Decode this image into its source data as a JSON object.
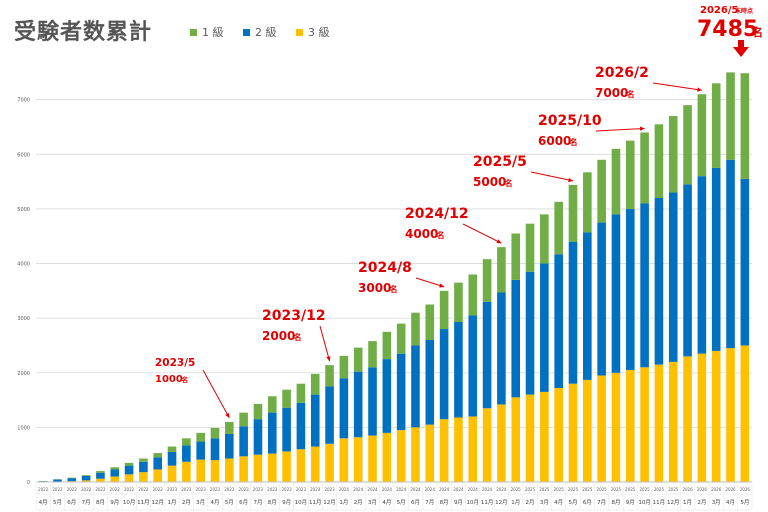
{
  "chart_data": {
    "type": "bar",
    "stacked": true,
    "title": "受験者数累計",
    "xlabel": "",
    "ylabel": "",
    "ylim": [
      0,
      7800
    ],
    "yticks": [
      0,
      1000,
      2000,
      3000,
      4000,
      5000,
      6000,
      7000
    ],
    "grid": true,
    "legend_position": "top",
    "categories": [
      "2022/4月",
      "2022/5月",
      "2022/6月",
      "2022/7月",
      "2022/8月",
      "2022/9月",
      "2022/10月",
      "2022/11月",
      "2022/12月",
      "2023/1月",
      "2023/2月",
      "2023/3月",
      "2023/4月",
      "2023/5月",
      "2023/6月",
      "2023/7月",
      "2023/8月",
      "2023/9月",
      "2023/10月",
      "2023/11月",
      "2023/12月",
      "2024/1月",
      "2024/2月",
      "2024/3月",
      "2024/4月",
      "2024/5月",
      "2024/6月",
      "2024/7月",
      "2024/8月",
      "2024/9月",
      "2024/10月",
      "2024/11月",
      "2024/12月",
      "2025/1月",
      "2025/2月",
      "2025/3月",
      "2025/4月",
      "2025/5月",
      "2025/6月",
      "2025/7月",
      "2025/8月",
      "2025/9月",
      "2025/10月",
      "2025/11月",
      "2025/12月",
      "2026/1月",
      "2026/2月",
      "2026/3月",
      "2026/4月",
      "2026/5月"
    ],
    "tick_year_labels": [
      "2022",
      "2022",
      "2022",
      "2022",
      "2022",
      "2022",
      "2022",
      "2022",
      "2022",
      "2023",
      "2023",
      "2023",
      "2023",
      "2023",
      "2023",
      "2023",
      "2023",
      "2023",
      "2023",
      "2023",
      "2023",
      "2024",
      "2024",
      "2024",
      "2024",
      "2024",
      "2024",
      "2024",
      "2024",
      "2024",
      "2024",
      "2024",
      "2024",
      "2025",
      "2025",
      "2025",
      "2025",
      "2025",
      "2025",
      "2025",
      "2025",
      "2025",
      "2025",
      "2025",
      "2025",
      "2026",
      "2026",
      "2026",
      "2026",
      "2026"
    ],
    "tick_month_labels": [
      "4月",
      "5月",
      "6月",
      "7月",
      "8月",
      "9月",
      "10月",
      "11月",
      "12月",
      "1月",
      "2月",
      "3月",
      "4月",
      "5月",
      "6月",
      "7月",
      "8月",
      "9月",
      "10月",
      "11月",
      "12月",
      "1月",
      "2月",
      "3月",
      "4月",
      "5月",
      "6月",
      "7月",
      "8月",
      "9月",
      "10月",
      "11月",
      "12月",
      "1月",
      "2月",
      "3月",
      "4月",
      "5月",
      "6月",
      "7月",
      "8月",
      "9月",
      "10月",
      "11月",
      "12月",
      "1月",
      "2月",
      "3月",
      "4月",
      "5月"
    ],
    "series": [
      {
        "name": "1 級",
        "color": "#70ad47",
        "values": [
          5,
          5,
          10,
          15,
          30,
          40,
          50,
          60,
          80,
          100,
          130,
          160,
          190,
          220,
          250,
          280,
          300,
          330,
          350,
          380,
          390,
          410,
          440,
          480,
          500,
          550,
          600,
          650,
          700,
          720,
          750,
          780,
          830,
          850,
          880,
          900,
          960,
          1040,
          1100,
          1150,
          1200,
          1250,
          1300,
          1350,
          1400,
          1450,
          1500,
          1550,
          1600,
          1935
        ]
      },
      {
        "name": "2 級",
        "color": "#0070c0",
        "values": [
          15,
          35,
          55,
          80,
          110,
          130,
          160,
          190,
          220,
          250,
          300,
          330,
          400,
          450,
          550,
          650,
          750,
          800,
          850,
          950,
          1050,
          1100,
          1200,
          1250,
          1350,
          1400,
          1500,
          1550,
          1650,
          1750,
          1850,
          1950,
          2050,
          2150,
          2250,
          2350,
          2450,
          2600,
          2700,
          2800,
          2900,
          2950,
          3000,
          3050,
          3100,
          3150,
          3250,
          3350,
          3450,
          3050
        ]
      },
      {
        "name": "3 級",
        "color": "#ffc000",
        "values": [
          0,
          10,
          15,
          30,
          60,
          100,
          140,
          180,
          230,
          300,
          370,
          410,
          400,
          430,
          470,
          500,
          520,
          560,
          600,
          650,
          700,
          800,
          820,
          850,
          900,
          950,
          1000,
          1050,
          1150,
          1180,
          1200,
          1350,
          1420,
          1550,
          1600,
          1650,
          1720,
          1800,
          1870,
          1950,
          2000,
          2050,
          2100,
          2150,
          2200,
          2300,
          2350,
          2400,
          2450,
          2500
        ]
      }
    ],
    "annotations": [
      {
        "category": "2023/5月",
        "date": "2023/5",
        "count": "1000",
        "unit": "名"
      },
      {
        "category": "2023/12月",
        "date": "2023/12",
        "count": "2000",
        "unit": "名"
      },
      {
        "category": "2024/8月",
        "date": "2024/8",
        "count": "3000",
        "unit": "名"
      },
      {
        "category": "2024/12月",
        "date": "2024/12",
        "count": "4000",
        "unit": "名"
      },
      {
        "category": "2025/5月",
        "date": "2025/5",
        "count": "5000",
        "unit": "名"
      },
      {
        "category": "2025/10月",
        "date": "2025/10",
        "count": "6000",
        "unit": "名"
      },
      {
        "category": "2026/2月",
        "date": "2026/2",
        "count": "7000",
        "unit": "名"
      }
    ],
    "callout": {
      "date": "2026/5",
      "suffix": "末時点",
      "total": "7485",
      "unit": "名"
    }
  }
}
